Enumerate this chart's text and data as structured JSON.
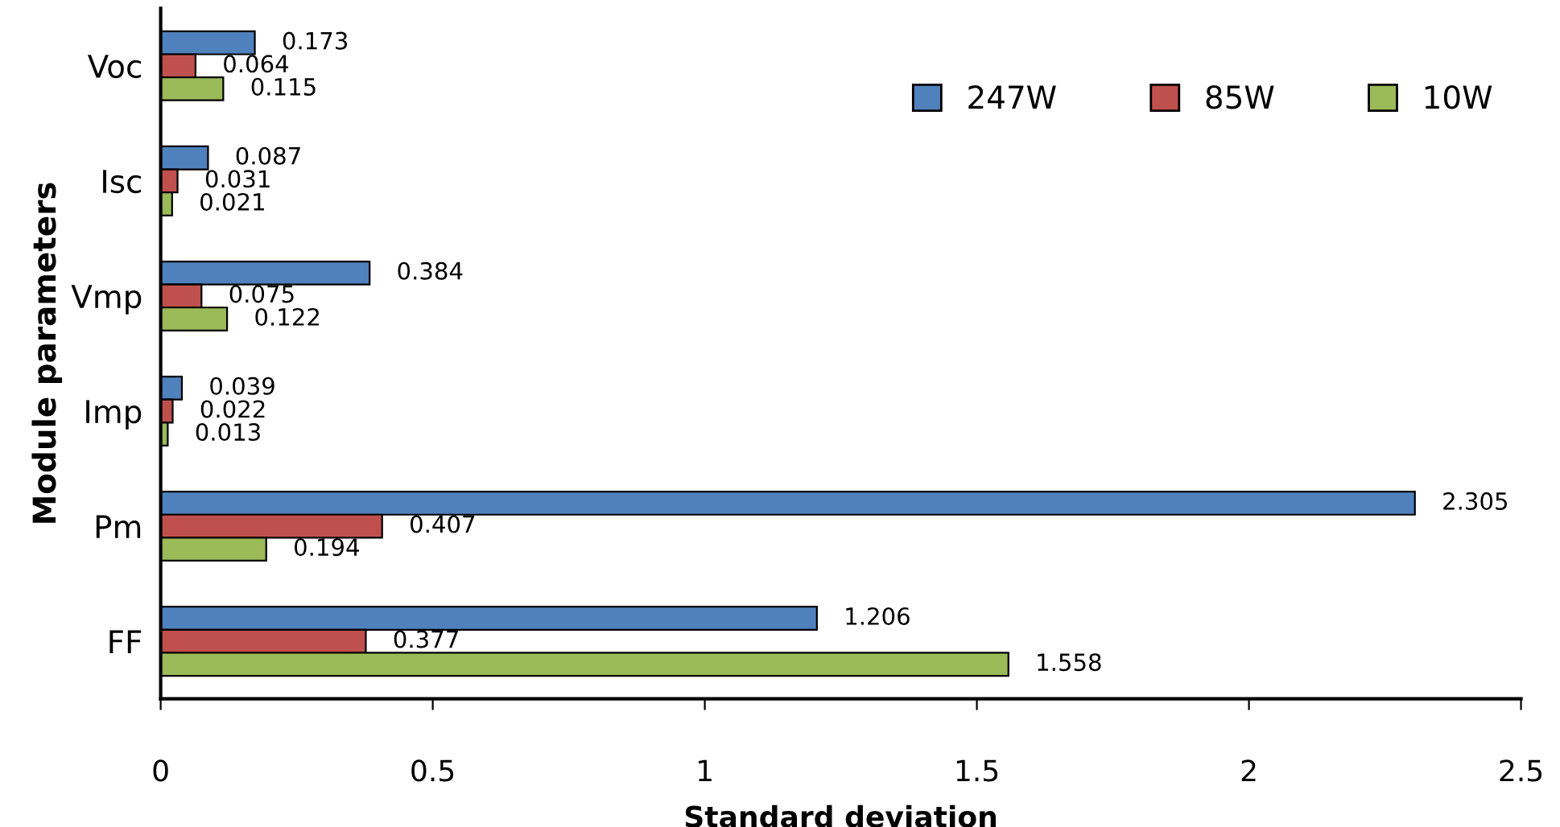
{
  "chart_data": {
    "type": "bar",
    "orientation": "horizontal",
    "xlabel": "Standard deviation",
    "ylabel": "Module parameters",
    "categories": [
      "Voc",
      "Isc",
      "Vmp",
      "Imp",
      "Pm",
      "FF"
    ],
    "series": [
      {
        "name": "247W",
        "color": "#4f81bd",
        "values": [
          0.173,
          0.087,
          0.384,
          0.039,
          2.305,
          1.206
        ]
      },
      {
        "name": "85W",
        "color": "#c0504d",
        "values": [
          0.064,
          0.031,
          0.075,
          0.022,
          0.407,
          0.377
        ]
      },
      {
        "name": "10W",
        "color": "#9bbb59",
        "values": [
          0.115,
          0.021,
          0.122,
          0.013,
          0.194,
          1.558
        ]
      }
    ],
    "xlim": [
      0,
      2.5
    ],
    "xticks": [
      0,
      0.5,
      1,
      1.5,
      2,
      2.5
    ],
    "data_labels": true,
    "legend": "top right",
    "grid": false
  }
}
